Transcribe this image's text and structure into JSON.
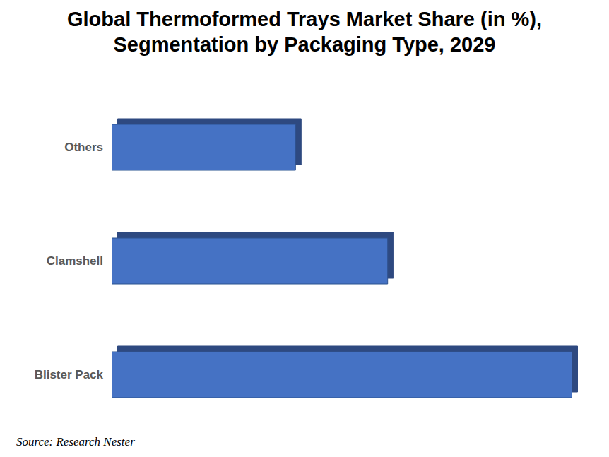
{
  "chart_data": {
    "type": "bar",
    "title": "Global Thermoformed Trays Market Share (in %),\nSegmentation by Packaging Type, 2029",
    "source": "Source: Research Nester",
    "categories": [
      "Others",
      "Clamshell",
      "Blister Pack"
    ],
    "values": [
      20,
      30,
      50
    ],
    "color": "#4472c4",
    "orientation": "horizontal",
    "xlim": [
      0,
      50
    ],
    "grid": false,
    "data_labels": false,
    "tick_labels": "y"
  }
}
